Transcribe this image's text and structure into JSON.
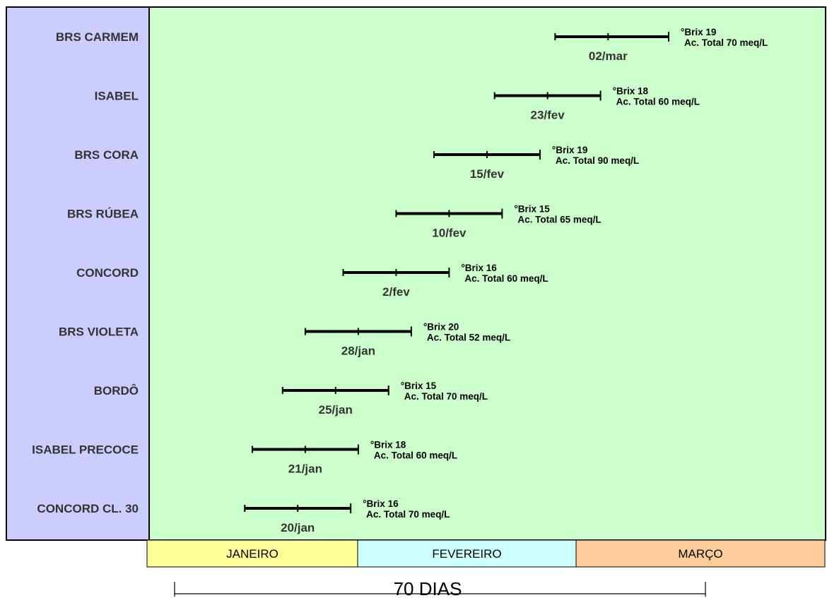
{
  "chart_data": {
    "type": "range-bar",
    "title": "",
    "colors": {
      "plot_bg": "#ccffcc",
      "label_panel_bg": "#ccccff",
      "bar": "#000000",
      "month_colors": [
        "#ffff99",
        "#ccffff",
        "#ffcc99"
      ]
    },
    "months": [
      "JANEIRO",
      "FEVEREIRO",
      "MARÇO"
    ],
    "span_label": "70 DIAS",
    "span_days": 70,
    "rows": [
      {
        "category": "BRS CARMEM",
        "start_day": 54,
        "mid_day": 61,
        "end_day": 69,
        "mid_label": "02/mar",
        "brix": "°Brix  19",
        "acidity": "Ac. Total 70 meq/L"
      },
      {
        "category": "ISABEL",
        "start_day": 46,
        "mid_day": 53,
        "end_day": 60,
        "mid_label": "23/fev",
        "brix": "°Brix  18",
        "acidity": "Ac. Total 60 meq/L"
      },
      {
        "category": "BRS CORA",
        "start_day": 38,
        "mid_day": 45,
        "end_day": 52,
        "mid_label": "15/fev",
        "brix": "°Brix  19",
        "acidity": "Ac. Total 90  meq/L"
      },
      {
        "category": "BRS RÚBEA",
        "start_day": 33,
        "mid_day": 40,
        "end_day": 47,
        "mid_label": "10/fev",
        "brix": "°Brix  15",
        "acidity": "Ac. Total 65 meq/L"
      },
      {
        "category": "CONCORD",
        "start_day": 26,
        "mid_day": 33,
        "end_day": 40,
        "mid_label": "2/fev",
        "brix": "°Brix  16",
        "acidity": "Ac. Total 60 meq/L"
      },
      {
        "category": "BRS VIOLETA",
        "start_day": 21,
        "mid_day": 28,
        "end_day": 35,
        "mid_label": "28/jan",
        "brix": "°Brix  20",
        "acidity": "Ac. Total 52 meq/L"
      },
      {
        "category": "BORDÔ",
        "start_day": 18,
        "mid_day": 25,
        "end_day": 32,
        "mid_label": "25/jan",
        "brix": "°Brix  15",
        "acidity": "Ac. Total 70 meq/L"
      },
      {
        "category": "ISABEL PRECOCE",
        "start_day": 14,
        "mid_day": 21,
        "end_day": 28,
        "mid_label": "21/jan",
        "brix": "°Brix  18",
        "acidity": "Ac. Total 60 meq/L"
      },
      {
        "category": "CONCORD CL. 30",
        "start_day": 13,
        "mid_day": 20,
        "end_day": 27,
        "mid_label": "20/jan",
        "brix": "°Brix  16",
        "acidity": "Ac. Total 70 meq/L"
      }
    ]
  }
}
